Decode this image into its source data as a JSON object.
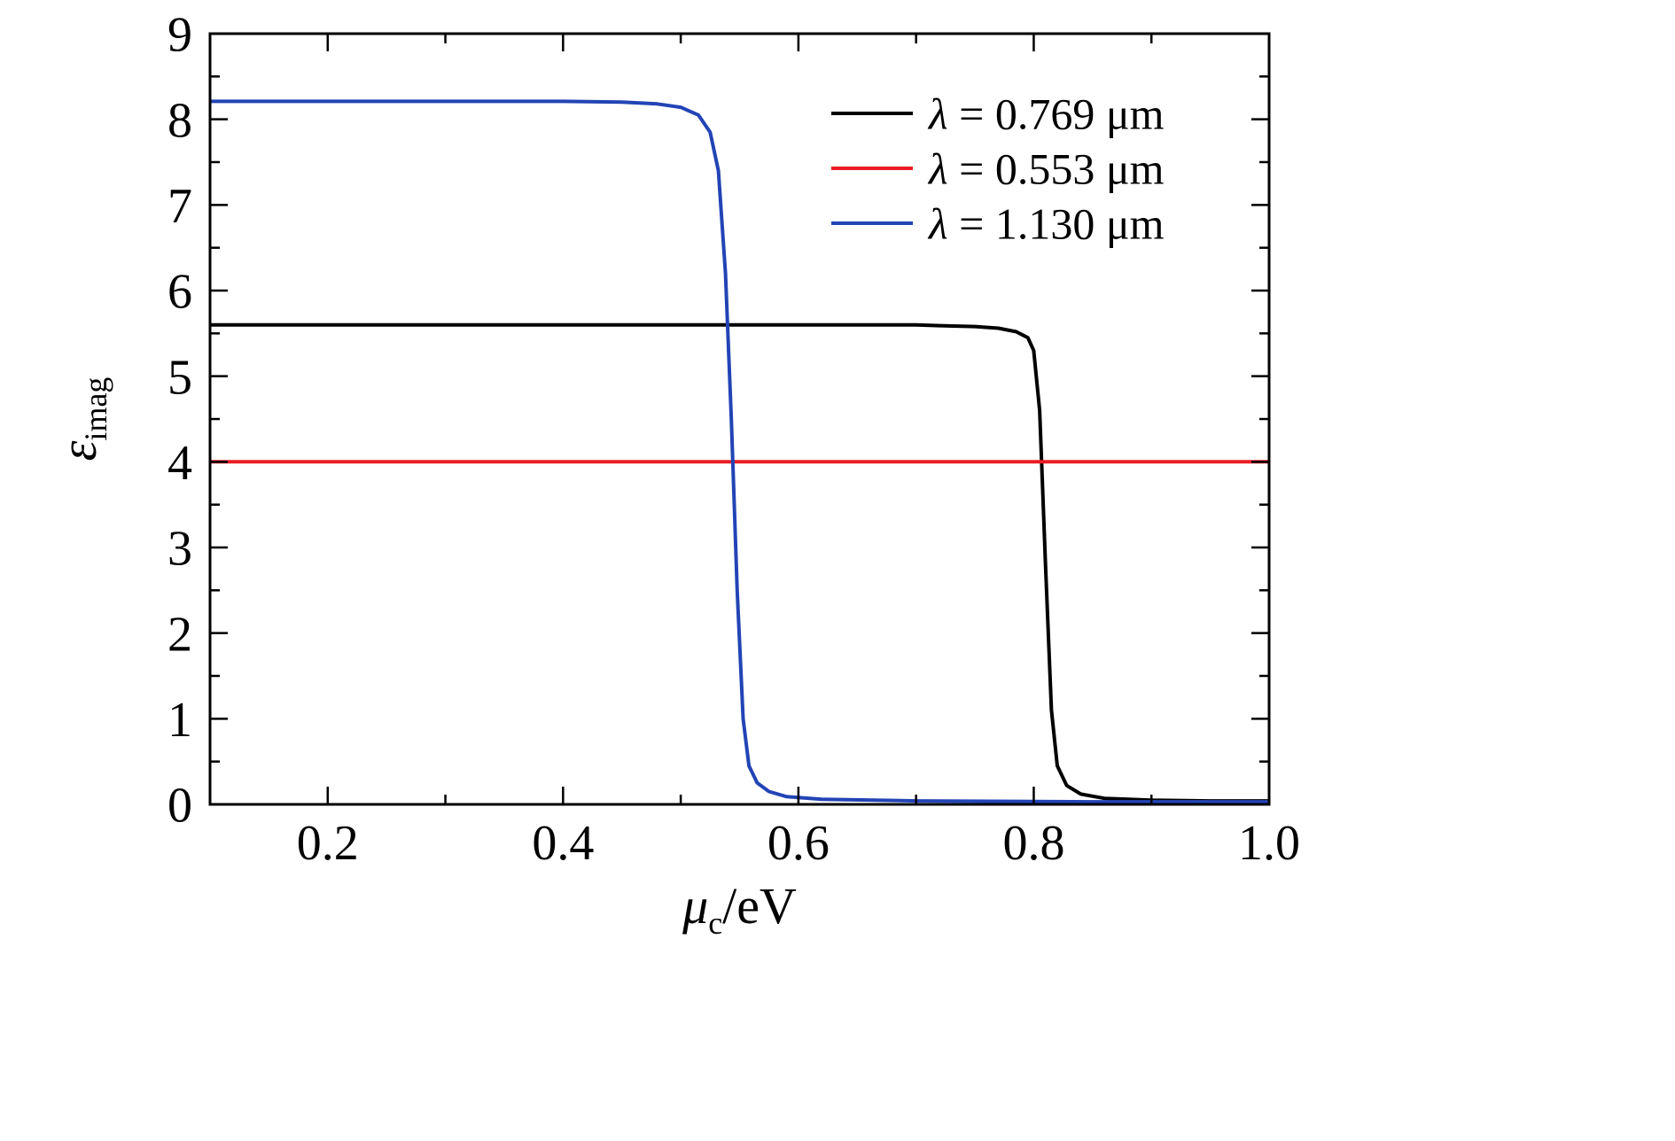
{
  "figure": {
    "background": "#ffffff",
    "axis_color": "#000000"
  },
  "chart_data": {
    "type": "line",
    "title": "",
    "xlabel": {
      "symbol": "μ",
      "subscript": "c",
      "suffix": "/eV",
      "text": "μc/eV"
    },
    "ylabel": {
      "symbol": "ε",
      "subscript": "imag",
      "text": "εimag"
    },
    "xlim": [
      0.1,
      1.0
    ],
    "ylim": [
      0,
      9
    ],
    "grid": false,
    "legend_position": "top-right",
    "xticks": {
      "major": [
        0.2,
        0.4,
        0.6,
        0.8,
        1.0
      ],
      "labels": [
        "0.2",
        "0.4",
        "0.6",
        "0.8",
        "1.0"
      ],
      "minor": [
        0.3,
        0.5,
        0.7,
        0.9
      ]
    },
    "yticks": {
      "major": [
        0,
        1,
        2,
        3,
        4,
        5,
        6,
        7,
        8,
        9
      ],
      "labels": [
        "0",
        "1",
        "2",
        "3",
        "4",
        "5",
        "6",
        "7",
        "8",
        "9"
      ],
      "minor": [
        0.5,
        1.5,
        2.5,
        3.5,
        4.5,
        5.5,
        6.5,
        7.5,
        8.5
      ]
    },
    "series": [
      {
        "name": "λ = 0.769 μm",
        "symbol": "λ",
        "rest": " = 0.769 μm",
        "color": "#000000",
        "points": [
          [
            0.1,
            5.6
          ],
          [
            0.2,
            5.6
          ],
          [
            0.3,
            5.6
          ],
          [
            0.4,
            5.6
          ],
          [
            0.5,
            5.6
          ],
          [
            0.6,
            5.6
          ],
          [
            0.65,
            5.6
          ],
          [
            0.7,
            5.6
          ],
          [
            0.72,
            5.59
          ],
          [
            0.75,
            5.58
          ],
          [
            0.77,
            5.56
          ],
          [
            0.785,
            5.52
          ],
          [
            0.795,
            5.45
          ],
          [
            0.8,
            5.3
          ],
          [
            0.805,
            4.6
          ],
          [
            0.81,
            2.8
          ],
          [
            0.815,
            1.1
          ],
          [
            0.82,
            0.45
          ],
          [
            0.828,
            0.22
          ],
          [
            0.84,
            0.12
          ],
          [
            0.86,
            0.07
          ],
          [
            0.9,
            0.05
          ],
          [
            0.95,
            0.04
          ],
          [
            1.0,
            0.04
          ]
        ]
      },
      {
        "name": "λ = 0.553 μm",
        "symbol": "λ",
        "rest": " = 0.553 μm",
        "color": "#ec1c24",
        "points": [
          [
            0.1,
            4.0
          ],
          [
            1.0,
            4.0
          ]
        ]
      },
      {
        "name": "λ = 1.130 μm",
        "symbol": "λ",
        "rest": " = 1.130 μm",
        "color": "#2244b5",
        "points": [
          [
            0.1,
            8.21
          ],
          [
            0.2,
            8.21
          ],
          [
            0.3,
            8.21
          ],
          [
            0.4,
            8.21
          ],
          [
            0.45,
            8.2
          ],
          [
            0.48,
            8.18
          ],
          [
            0.5,
            8.14
          ],
          [
            0.515,
            8.05
          ],
          [
            0.525,
            7.85
          ],
          [
            0.532,
            7.4
          ],
          [
            0.538,
            6.2
          ],
          [
            0.543,
            4.5
          ],
          [
            0.548,
            2.5
          ],
          [
            0.553,
            1.0
          ],
          [
            0.558,
            0.45
          ],
          [
            0.565,
            0.25
          ],
          [
            0.575,
            0.15
          ],
          [
            0.59,
            0.09
          ],
          [
            0.62,
            0.06
          ],
          [
            0.7,
            0.04
          ],
          [
            0.85,
            0.03
          ],
          [
            1.0,
            0.03
          ]
        ]
      }
    ]
  },
  "legend": {
    "items": [
      {
        "label": "λ = 0.769 μm",
        "symbol": "λ",
        "rest": " = 0.769 μm",
        "color": "#000000"
      },
      {
        "label": "λ = 0.553 μm",
        "symbol": "λ",
        "rest": " = 0.553 μm",
        "color": "#ec1c24"
      },
      {
        "label": "λ = 1.130 μm",
        "symbol": "λ",
        "rest": " = 1.130 μm",
        "color": "#2244b5"
      }
    ]
  }
}
